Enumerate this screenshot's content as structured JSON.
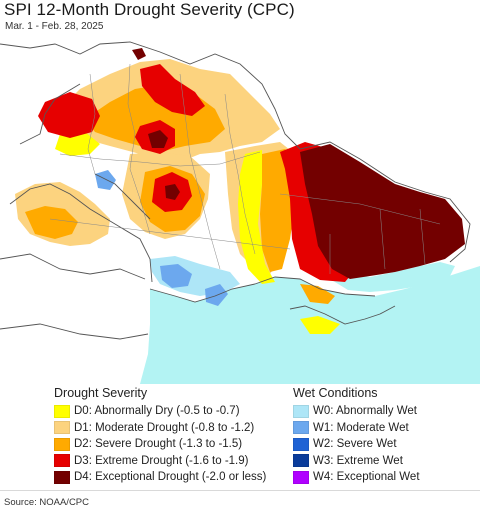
{
  "header": {
    "title": "SPI 12-Month Drought Severity (CPC)",
    "subtitle": "Mar. 1 - Feb. 28, 2025"
  },
  "colors": {
    "background_land": "#ffffff",
    "sea": "#b3f3f3",
    "border": "#555555",
    "D0": "#ffff00",
    "D1": "#fcd37f",
    "D2": "#ffaa00",
    "D3": "#e60000",
    "D4": "#730000",
    "W0": "#aee6f7",
    "W1": "#6ca8ee",
    "W2": "#1f62d4",
    "W3": "#0a3c9b",
    "W4": "#b000ff"
  },
  "legend": {
    "drought_heading": "Drought Severity",
    "wet_heading": "Wet Conditions",
    "drought_items": [
      {
        "code": "D0",
        "label": "D0: Abnormally Dry (-0.5 to -0.7)",
        "color": "#ffff00"
      },
      {
        "code": "D1",
        "label": "D1: Moderate Drought (-0.8 to -1.2)",
        "color": "#fcd37f"
      },
      {
        "code": "D2",
        "label": "D2: Severe Drought (-1.3 to -1.5)",
        "color": "#ffaa00"
      },
      {
        "code": "D3",
        "label": "D3: Extreme Drought (-1.6 to -1.9)",
        "color": "#e60000"
      },
      {
        "code": "D4",
        "label": "D4: Exceptional Drought (-2.0 or less)",
        "color": "#730000"
      }
    ],
    "wet_items": [
      {
        "code": "W0",
        "label": "W0: Abnormally Wet",
        "color": "#aee6f7"
      },
      {
        "code": "W1",
        "label": "W1: Moderate Wet",
        "color": "#6ca8ee"
      },
      {
        "code": "W2",
        "label": "W2: Severe Wet",
        "color": "#1f62d4"
      },
      {
        "code": "W3",
        "label": "W3: Extreme Wet",
        "color": "#0a3c9b"
      },
      {
        "code": "W4",
        "label": "W4: Exceptional Wet",
        "color": "#b000ff"
      }
    ]
  },
  "footer": {
    "source": "Source: NOAA/CPC"
  }
}
